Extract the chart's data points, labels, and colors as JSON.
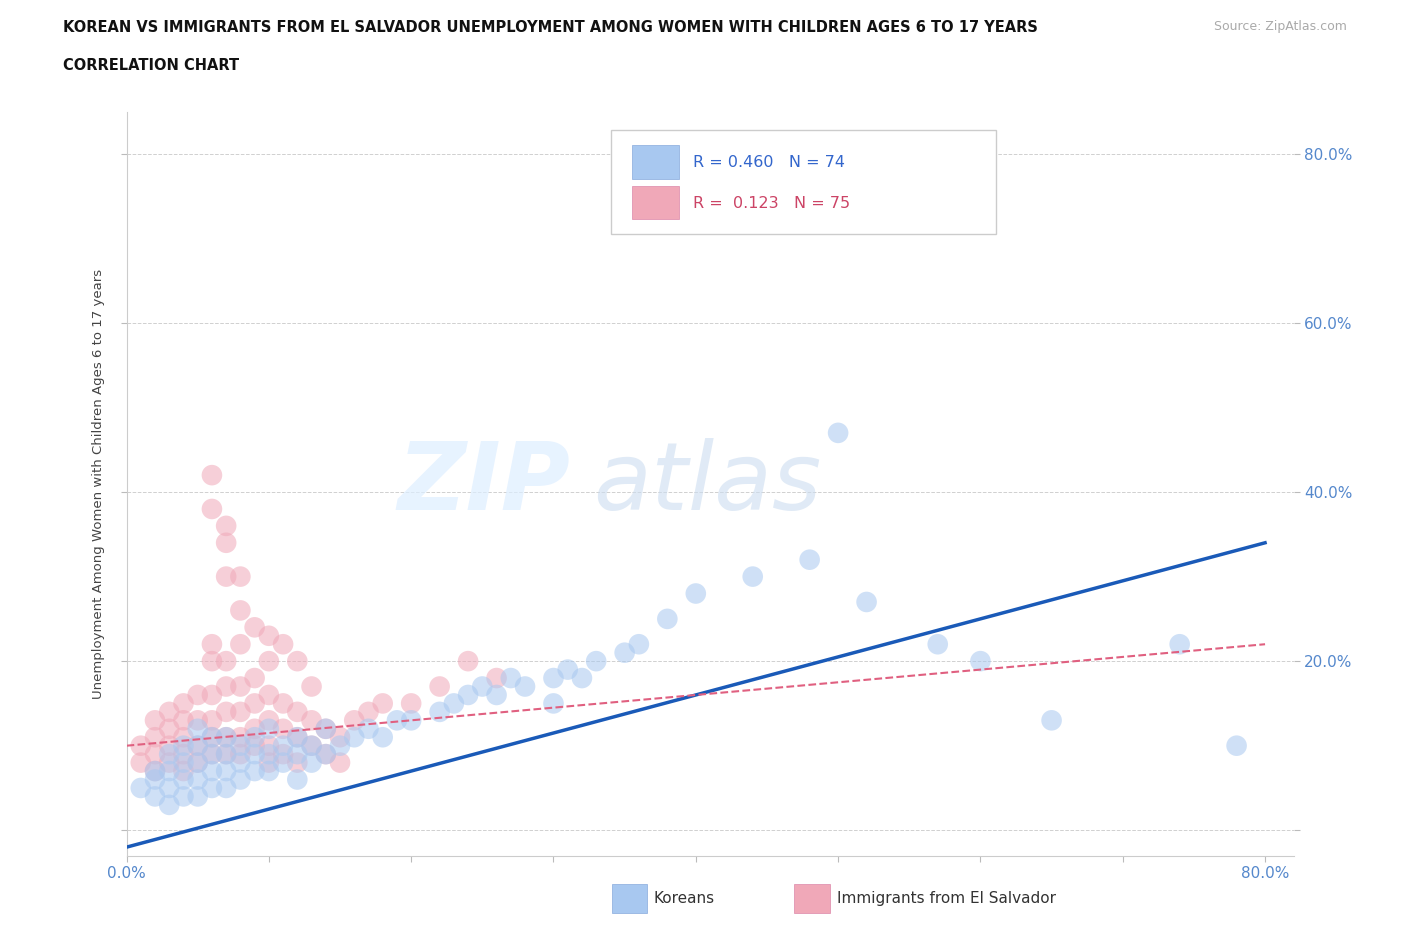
{
  "title_line1": "KOREAN VS IMMIGRANTS FROM EL SALVADOR UNEMPLOYMENT AMONG WOMEN WITH CHILDREN AGES 6 TO 17 YEARS",
  "title_line2": "CORRELATION CHART",
  "source": "Source: ZipAtlas.com",
  "ylabel": "Unemployment Among Women with Children Ages 6 to 17 years",
  "xlim": [
    0.0,
    0.82
  ],
  "ylim": [
    -0.03,
    0.85
  ],
  "korean_color": "#a8c8f0",
  "salvador_color": "#f0a8b8",
  "korean_line_color": "#1a5ab8",
  "salvador_line_color": "#e06080",
  "korean_R": 0.46,
  "korean_N": 74,
  "salvador_R": 0.123,
  "salvador_N": 75,
  "legend_korean": "Koreans",
  "legend_salvador": "Immigrants from El Salvador",
  "korean_line_x0": 0.0,
  "korean_line_y0": -0.02,
  "korean_line_x1": 0.8,
  "korean_line_y1": 0.34,
  "salvador_line_x0": 0.0,
  "salvador_line_y0": 0.1,
  "salvador_line_x1": 0.8,
  "salvador_line_y1": 0.22,
  "korean_scatter_x": [
    0.01,
    0.02,
    0.02,
    0.02,
    0.03,
    0.03,
    0.03,
    0.03,
    0.04,
    0.04,
    0.04,
    0.04,
    0.05,
    0.05,
    0.05,
    0.05,
    0.05,
    0.06,
    0.06,
    0.06,
    0.06,
    0.07,
    0.07,
    0.07,
    0.07,
    0.08,
    0.08,
    0.08,
    0.09,
    0.09,
    0.09,
    0.1,
    0.1,
    0.1,
    0.11,
    0.11,
    0.12,
    0.12,
    0.12,
    0.13,
    0.13,
    0.14,
    0.14,
    0.15,
    0.16,
    0.17,
    0.18,
    0.19,
    0.2,
    0.22,
    0.23,
    0.24,
    0.25,
    0.26,
    0.27,
    0.28,
    0.3,
    0.3,
    0.31,
    0.32,
    0.33,
    0.35,
    0.36,
    0.38,
    0.4,
    0.44,
    0.48,
    0.5,
    0.52,
    0.57,
    0.6,
    0.65,
    0.74,
    0.78
  ],
  "korean_scatter_y": [
    0.05,
    0.06,
    0.04,
    0.07,
    0.03,
    0.05,
    0.07,
    0.09,
    0.04,
    0.06,
    0.08,
    0.1,
    0.04,
    0.06,
    0.08,
    0.1,
    0.12,
    0.05,
    0.07,
    0.09,
    0.11,
    0.05,
    0.07,
    0.09,
    0.11,
    0.06,
    0.08,
    0.1,
    0.07,
    0.09,
    0.11,
    0.07,
    0.09,
    0.12,
    0.08,
    0.1,
    0.06,
    0.09,
    0.11,
    0.08,
    0.1,
    0.09,
    0.12,
    0.1,
    0.11,
    0.12,
    0.11,
    0.13,
    0.13,
    0.14,
    0.15,
    0.16,
    0.17,
    0.16,
    0.18,
    0.17,
    0.15,
    0.18,
    0.19,
    0.18,
    0.2,
    0.21,
    0.22,
    0.25,
    0.28,
    0.3,
    0.32,
    0.47,
    0.27,
    0.22,
    0.2,
    0.13,
    0.22,
    0.1
  ],
  "salvador_scatter_x": [
    0.01,
    0.01,
    0.02,
    0.02,
    0.02,
    0.02,
    0.03,
    0.03,
    0.03,
    0.03,
    0.04,
    0.04,
    0.04,
    0.04,
    0.04,
    0.05,
    0.05,
    0.05,
    0.05,
    0.06,
    0.06,
    0.06,
    0.06,
    0.06,
    0.06,
    0.07,
    0.07,
    0.07,
    0.07,
    0.07,
    0.08,
    0.08,
    0.08,
    0.08,
    0.08,
    0.09,
    0.09,
    0.09,
    0.09,
    0.1,
    0.1,
    0.1,
    0.1,
    0.11,
    0.11,
    0.11,
    0.12,
    0.12,
    0.12,
    0.13,
    0.13,
    0.14,
    0.14,
    0.15,
    0.15,
    0.16,
    0.17,
    0.18,
    0.2,
    0.22,
    0.24,
    0.26,
    0.06,
    0.07,
    0.07,
    0.08,
    0.09,
    0.1,
    0.1,
    0.11,
    0.12,
    0.13,
    0.06,
    0.07,
    0.08
  ],
  "salvador_scatter_y": [
    0.08,
    0.1,
    0.07,
    0.09,
    0.11,
    0.13,
    0.08,
    0.1,
    0.12,
    0.14,
    0.07,
    0.09,
    0.11,
    0.13,
    0.15,
    0.08,
    0.1,
    0.13,
    0.16,
    0.09,
    0.11,
    0.13,
    0.16,
    0.2,
    0.22,
    0.09,
    0.11,
    0.14,
    0.17,
    0.2,
    0.09,
    0.11,
    0.14,
    0.17,
    0.22,
    0.1,
    0.12,
    0.15,
    0.18,
    0.08,
    0.1,
    0.13,
    0.16,
    0.09,
    0.12,
    0.15,
    0.08,
    0.11,
    0.14,
    0.1,
    0.13,
    0.09,
    0.12,
    0.08,
    0.11,
    0.13,
    0.14,
    0.15,
    0.15,
    0.17,
    0.2,
    0.18,
    0.38,
    0.3,
    0.34,
    0.26,
    0.24,
    0.2,
    0.23,
    0.22,
    0.2,
    0.17,
    0.42,
    0.36,
    0.3
  ]
}
